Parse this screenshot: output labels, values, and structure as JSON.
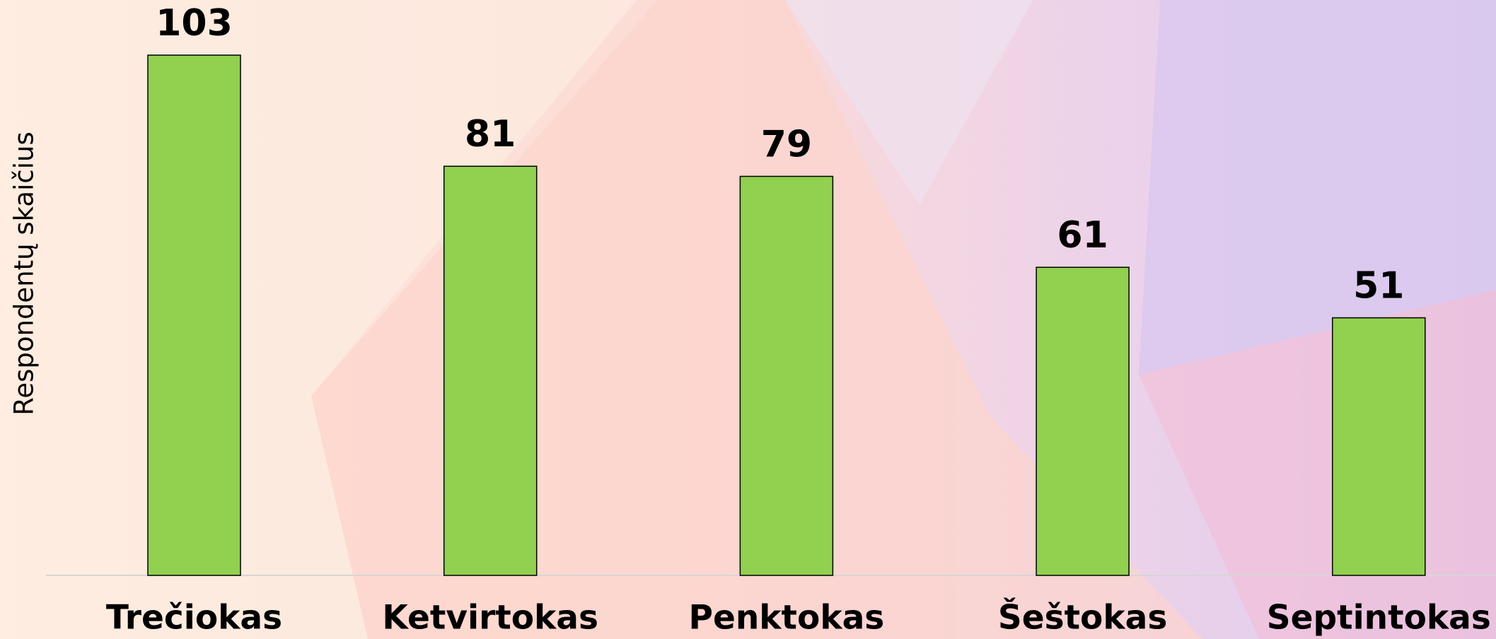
{
  "chart_data": {
    "type": "bar",
    "y_axis_label": "Respondentų skaičius",
    "categories": [
      "Trečiokas",
      "Ketvirtokas",
      "Penktokas",
      "Šeštokas",
      "Septintokas"
    ],
    "values": [
      103,
      81,
      79,
      61,
      51
    ],
    "color": "#92d050"
  }
}
